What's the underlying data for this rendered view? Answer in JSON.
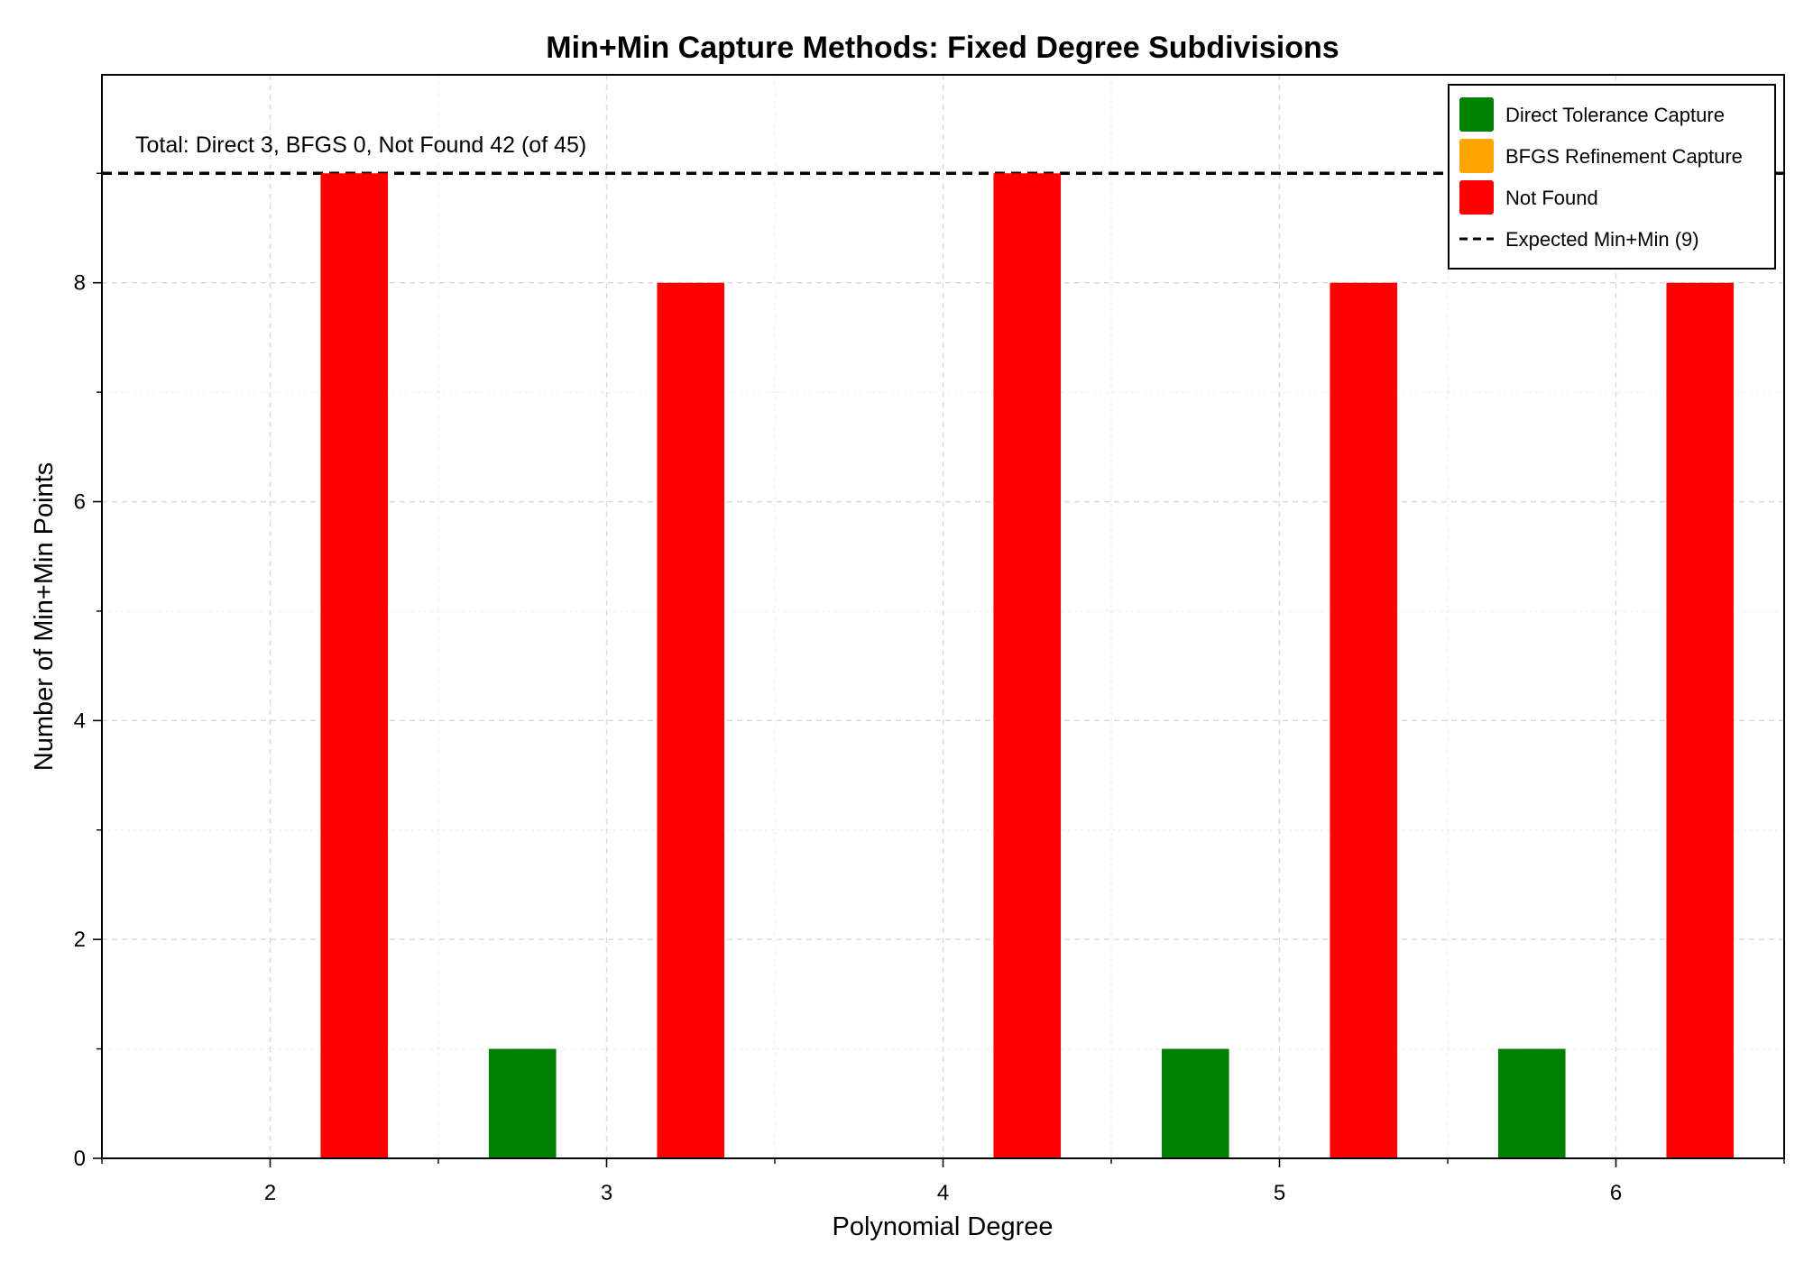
{
  "chart_data": {
    "type": "bar",
    "title": "Min+Min Capture Methods: Fixed Degree Subdivisions",
    "xlabel": "Polynomial Degree",
    "ylabel": "Number of Min+Min Points",
    "categories": [
      2,
      3,
      4,
      5,
      6
    ],
    "xlim": [
      1.5,
      6.5
    ],
    "ylim": [
      0,
      9.9
    ],
    "x_ticks": [
      "2",
      "3",
      "4",
      "5",
      "6"
    ],
    "y_ticks": [
      0,
      2,
      4,
      6,
      8
    ],
    "grid": true,
    "legend_position": "top-right",
    "series": [
      {
        "name": "Direct Tolerance Capture",
        "color": "#008000",
        "values": [
          0,
          1,
          0,
          1,
          1
        ]
      },
      {
        "name": "BFGS Refinement Capture",
        "color": "#FFA500",
        "values": [
          0,
          0,
          0,
          0,
          0
        ]
      },
      {
        "name": "Not Found",
        "color": "#FF0000",
        "values": [
          9,
          8,
          9,
          8,
          8
        ]
      }
    ],
    "reference_line": {
      "name": "Expected Min+Min (9)",
      "value": 9,
      "style": "dashed",
      "color": "#000000"
    },
    "annotation": "Total: Direct 3, BFGS 0, Not Found 42 (of 45)"
  }
}
